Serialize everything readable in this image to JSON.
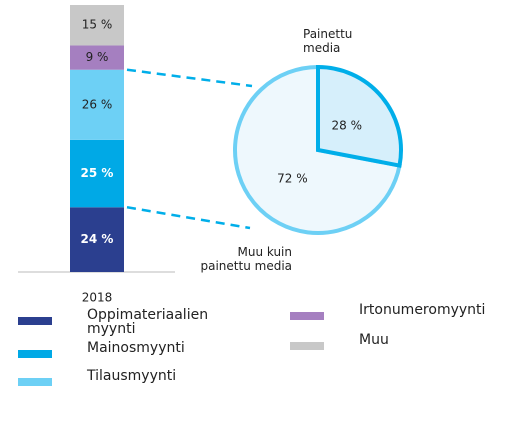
{
  "chart_data": [
    {
      "type": "bar",
      "categories": [
        "2018"
      ],
      "series": [
        {
          "name": "Oppimateriaalien myynti",
          "color": "#2b3f8f",
          "values": [
            24
          ],
          "value_labels": [
            "24 %"
          ]
        },
        {
          "name": "Mainosmyynti",
          "color": "#00a9e6",
          "values": [
            25
          ],
          "value_labels": [
            "25 %"
          ]
        },
        {
          "name": "Tilausmyynti",
          "color": "#6dd0f5",
          "values": [
            26
          ],
          "value_labels": [
            "26 %"
          ]
        },
        {
          "name": "Irtonumeromyynti",
          "color": "#a57fc0",
          "values": [
            9
          ],
          "value_labels": [
            "9 %"
          ]
        },
        {
          "name": "Muu",
          "color": "#c8c8c8",
          "values": [
            15
          ],
          "value_labels": [
            "15 %"
          ]
        }
      ]
    },
    {
      "type": "pie",
      "categories": [
        "Painettu media",
        "Muu kuin painettu media"
      ],
      "values": [
        28,
        72
      ],
      "value_labels": [
        "28 %",
        "72 %"
      ],
      "colors": [
        "#d6effb",
        "#eef8fd"
      ],
      "edge_colors": [
        "#00aee9",
        "#6dd0f5"
      ]
    }
  ]
}
